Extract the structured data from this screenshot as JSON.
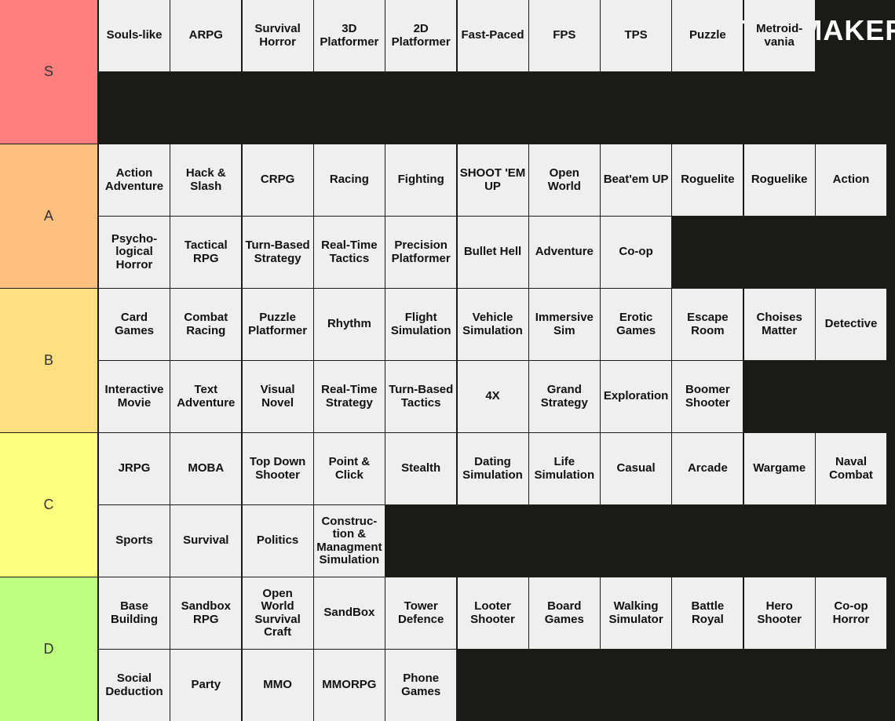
{
  "logo": "TiERMAKER",
  "tiers": [
    {
      "label": "S",
      "color": "#ff7f7f",
      "items": [
        "Souls-like",
        "ARPG",
        "Survival\nHorror",
        "3D\nPlatformer",
        "2D\nPlatformer",
        "Fast-Paced",
        "FPS",
        "TPS",
        "Puzzle",
        "Metroid-\nvania"
      ]
    },
    {
      "label": "A",
      "color": "#ffbf7f",
      "items": [
        "Action\nAdventure",
        "Hack &\nSlash",
        "CRPG",
        "Racing",
        "Fighting",
        "SHOOT 'EM\nUP",
        "Open\nWorld",
        "Beat'em UP",
        "Roguelite",
        "Roguelike",
        "Action",
        "Psycho-\nlogical\nHorror",
        "Tactical\nRPG",
        "Turn-Based\nStrategy",
        "Real-Time\nTactics",
        "Precision\nPlatformer",
        "Bullet Hell",
        "Adventure",
        "Co-op"
      ]
    },
    {
      "label": "B",
      "color": "#ffdf7f",
      "items": [
        "Card\nGames",
        "Combat\nRacing",
        "Puzzle\nPlatformer",
        "Rhythm",
        "Flight\nSimulation",
        "Vehicle\nSimulation",
        "Immersive\nSim",
        "Erotic\nGames",
        "Escape\nRoom",
        "Choises\nMatter",
        "Detective",
        "Interactive\nMovie",
        "Text\nAdventure",
        "Visual\nNovel",
        "Real-Time\nStrategy",
        "Turn-Based\nTactics",
        "4X",
        "Grand\nStrategy",
        "Exploration",
        "Boomer\nShooter"
      ]
    },
    {
      "label": "C",
      "color": "#ffff7f",
      "items": [
        "JRPG",
        "MOBA",
        "Top Down\nShooter",
        "Point &\nClick",
        "Stealth",
        "Dating\nSimulation",
        "Life\nSimulation",
        "Casual",
        "Arcade",
        "Wargame",
        "Naval\nCombat",
        "Sports",
        "Survival",
        "Politics",
        "Construc-\ntion &\nManagment\nSimulation"
      ]
    },
    {
      "label": "D",
      "color": "#bfff7f",
      "items": [
        "Base\nBuilding",
        "Sandbox\nRPG",
        "Open\nWorld\nSurvival\nCraft",
        "SandBox",
        "Tower\nDefence",
        "Looter\nShooter",
        "Board\nGames",
        "Walking\nSimulator",
        "Battle\nRoyal",
        "Hero\nShooter",
        "Co-op\nHorror",
        "Social\nDeduction",
        "Party",
        "MMO",
        "MMORPG",
        "Phone\nGames"
      ]
    }
  ]
}
